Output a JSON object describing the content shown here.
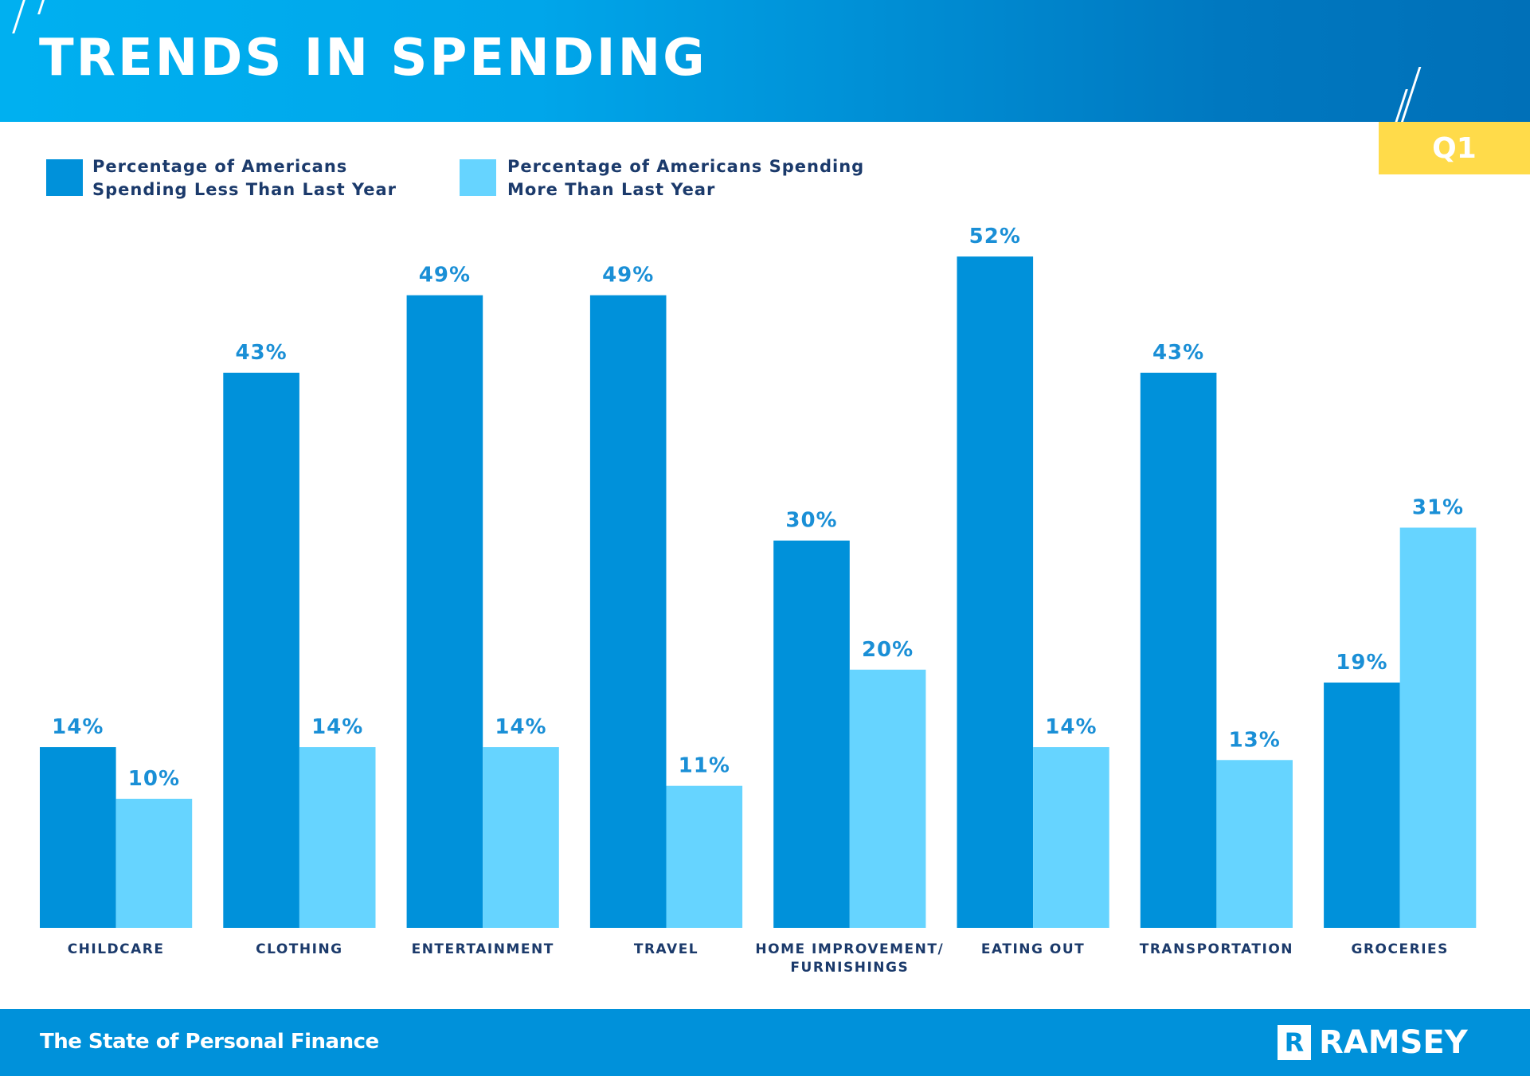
{
  "header": {
    "title": "TRENDS IN SPENDING",
    "badge": "Q1"
  },
  "footer": {
    "text": "The State of Personal Finance",
    "logo_mark": "R",
    "logo_text": "RAMSEY"
  },
  "colors": {
    "less": "#0091da",
    "more": "#66d4ff",
    "value_label": "#1a8fd6",
    "category_label": "#1b3a6b",
    "badge": "#ffdb4a"
  },
  "chart_data": {
    "type": "bar",
    "categories": [
      [
        "CHILDCARE"
      ],
      [
        "CLOTHING"
      ],
      [
        "ENTERTAINMENT"
      ],
      [
        "TRAVEL"
      ],
      [
        "HOME IMPROVEMENT/",
        "FURNISHINGS"
      ],
      [
        "EATING OUT"
      ],
      [
        "TRANSPORTATION"
      ],
      [
        "GROCERIES"
      ]
    ],
    "series": [
      {
        "name": "Percentage of Americans Spending Less Than Last Year",
        "legend_lines": [
          "Percentage of Americans",
          "Spending Less Than Last Year"
        ],
        "values": [
          14,
          43,
          49,
          49,
          30,
          52,
          43,
          19
        ]
      },
      {
        "name": "Percentage of Americans Spending More Than Last Year",
        "legend_lines": [
          "Percentage of Americans Spending",
          "More Than Last Year"
        ],
        "values": [
          10,
          14,
          14,
          11,
          20,
          14,
          13,
          31
        ]
      }
    ],
    "value_suffix": "%",
    "legend_position": "top-left",
    "grid": false,
    "ylim": [
      0,
      55
    ]
  }
}
